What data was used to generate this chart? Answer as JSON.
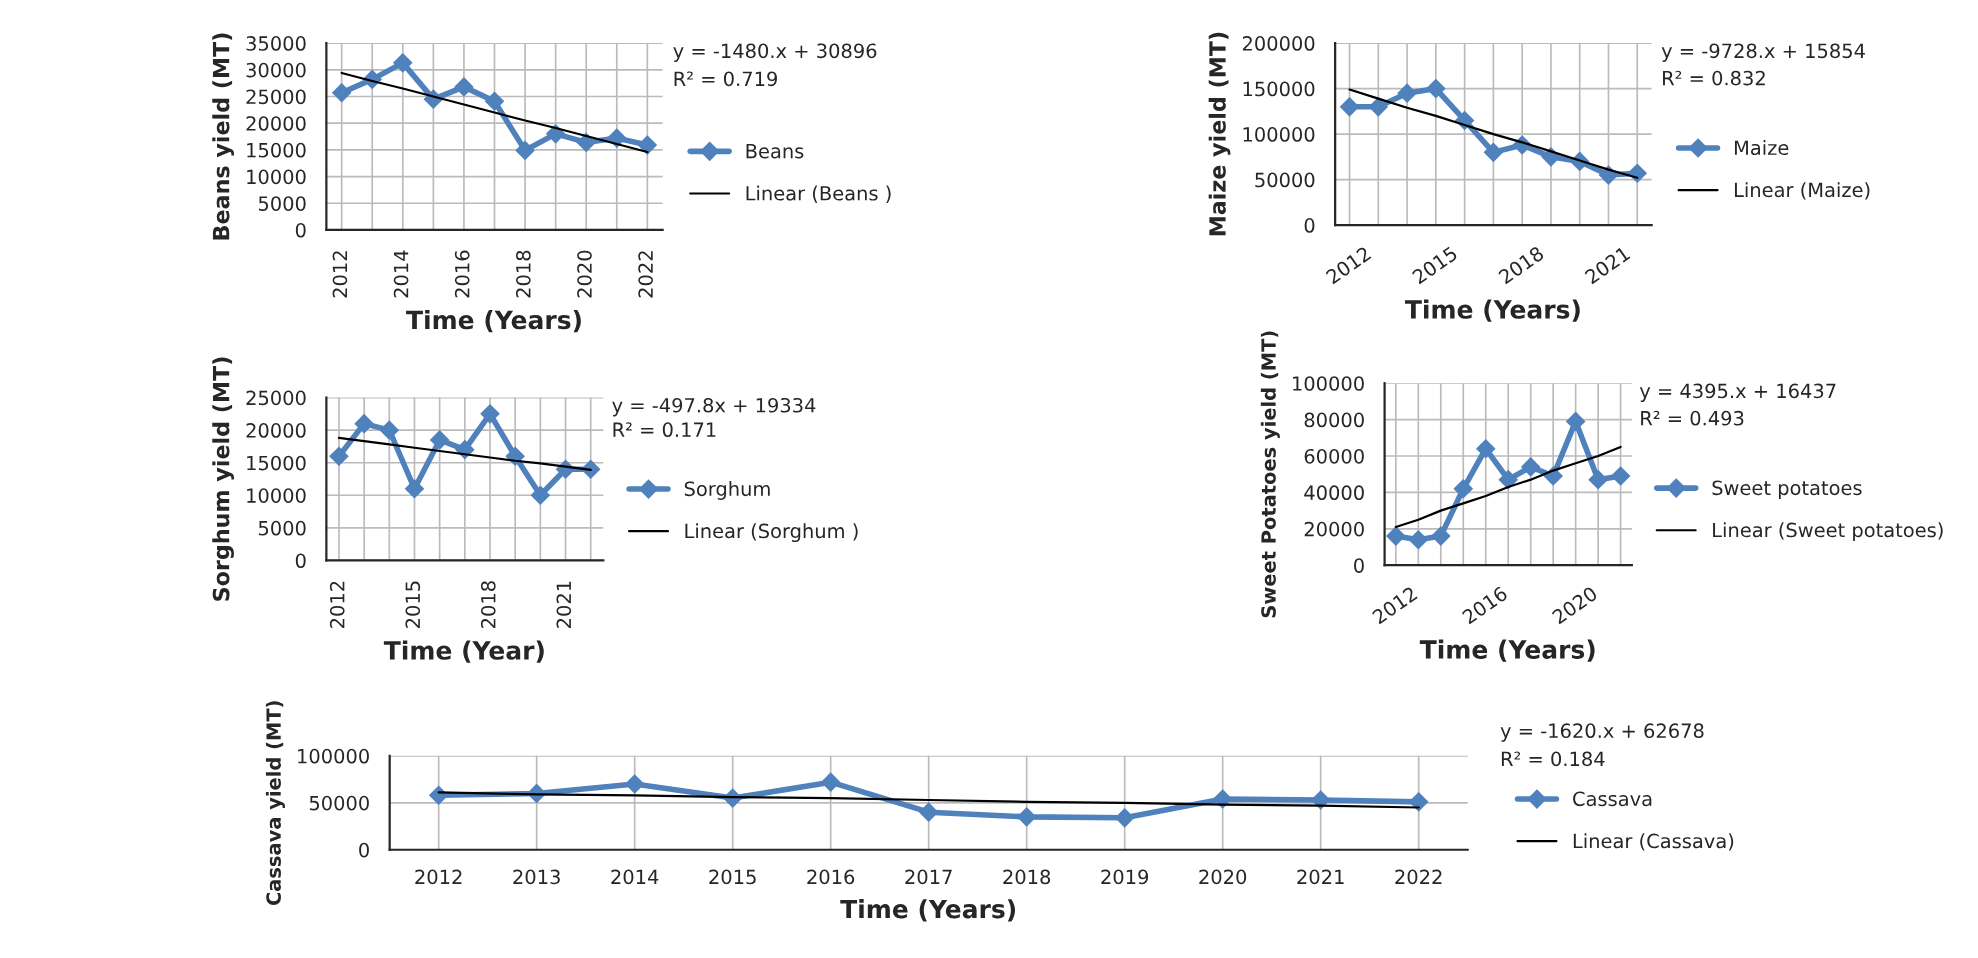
{
  "chart_data": [
    {
      "type": "line",
      "xlabel": "Time (Years)",
      "ylabel": "Beans yield (MT)",
      "categories": [
        "2012",
        null,
        "2014",
        null,
        "2016",
        null,
        "2018",
        null,
        "2020",
        null,
        "2022"
      ],
      "ylim": [
        0,
        35000
      ],
      "yticks": [
        0,
        5000,
        10000,
        15000,
        20000,
        25000,
        30000,
        35000
      ],
      "grid": true,
      "legend": "right",
      "line_style": "solid",
      "series": [
        {
          "name": "Beans",
          "color": "#4f81bd",
          "marker": "diamond",
          "values": [
            25700,
            28200,
            31300,
            24500,
            26800,
            24100,
            14900,
            18000,
            16400,
            17200,
            15900
          ]
        },
        {
          "name": "Linear (Beans )",
          "color": "#000000",
          "marker": "none",
          "values": [
            29400,
            27900,
            26500,
            25000,
            23500,
            22000,
            20500,
            19100,
            17600,
            16100,
            14600
          ]
        }
      ],
      "annotations": [
        "y = -1480.x + 30896",
        "R² = 0.719"
      ]
    },
    {
      "type": "line",
      "xlabel": "Time (Years)",
      "ylabel": "Maize yield (MT)",
      "categories": [
        "2012",
        null,
        null,
        "2015",
        null,
        null,
        "2018",
        null,
        null,
        "2021",
        null
      ],
      "ylim": [
        0,
        200000
      ],
      "yticks": [
        0,
        50000,
        100000,
        150000,
        200000
      ],
      "grid": true,
      "legend": "right",
      "line_style": "solid",
      "series": [
        {
          "name": "Maize",
          "color": "#4f81bd",
          "marker": "diamond",
          "values": [
            130000,
            130000,
            145000,
            150000,
            115000,
            80000,
            88000,
            75000,
            70000,
            55000,
            57000
          ]
        },
        {
          "name": "Linear (Maize)",
          "color": "#000000",
          "marker": "none",
          "values": [
            149000,
            139000,
            129000,
            120000,
            110000,
            100000,
            91000,
            81000,
            71000,
            61000,
            52000
          ]
        }
      ],
      "annotations": [
        "y = -9728.x + 15854",
        "R² = 0.832"
      ]
    },
    {
      "type": "line",
      "xlabel": "Time (Year)",
      "ylabel": "Sorghum yield (MT)",
      "categories": [
        "2012",
        null,
        null,
        "2015",
        null,
        null,
        "2018",
        null,
        null,
        "2021",
        null
      ],
      "ylim": [
        0,
        25000
      ],
      "yticks": [
        0,
        5000,
        10000,
        15000,
        20000,
        25000
      ],
      "grid": true,
      "legend": "right",
      "line_style": "solid",
      "series": [
        {
          "name": "Sorghum",
          "color": "#4f81bd",
          "marker": "diamond",
          "values": [
            16000,
            21000,
            20000,
            11000,
            18500,
            17000,
            22500,
            16000,
            10000,
            14000,
            14000
          ]
        },
        {
          "name": "Linear (Sorghum )",
          "color": "#000000",
          "marker": "none",
          "values": [
            18800,
            18300,
            17800,
            17300,
            16800,
            16300,
            15800,
            15300,
            14900,
            14400,
            13900
          ]
        }
      ],
      "annotations": [
        "y = -497.8x + 19334",
        "R² = 0.171"
      ]
    },
    {
      "type": "line",
      "xlabel": "Time (Years)",
      "ylabel": "Sweet Potatoes yield (MT)",
      "categories": [
        "2012",
        null,
        null,
        null,
        "2016",
        null,
        null,
        null,
        "2020",
        null,
        null
      ],
      "ylim": [
        0,
        100000
      ],
      "yticks": [
        0,
        20000,
        40000,
        60000,
        80000,
        100000
      ],
      "grid": true,
      "legend": "right",
      "line_style": "solid",
      "series": [
        {
          "name": "Sweet potatoes",
          "color": "#4f81bd",
          "marker": "diamond",
          "values": [
            16000,
            14000,
            16000,
            42000,
            64000,
            47000,
            54000,
            49000,
            79000,
            47000,
            49000
          ]
        },
        {
          "name": "Linear (Sweet potatoes)",
          "color": "#000000",
          "marker": "none",
          "values": [
            21000,
            25000,
            30000,
            34000,
            38000,
            43000,
            47000,
            52000,
            56000,
            60000,
            65000
          ]
        }
      ],
      "annotations": [
        "y = 4395.x + 16437",
        "R² = 0.493"
      ]
    },
    {
      "type": "line",
      "xlabel": "Time (Years)",
      "ylabel": "Cassava yield (MT)",
      "categories": [
        "2012",
        "2013",
        "2014",
        "2015",
        "2016",
        "2017",
        "2018",
        "2019",
        "2020",
        "2021",
        "2022"
      ],
      "ylim": [
        0,
        100000
      ],
      "yticks": [
        0,
        50000,
        100000
      ],
      "grid": true,
      "legend": "right",
      "line_style": "solid",
      "series": [
        {
          "name": "Cassava",
          "color": "#4f81bd",
          "marker": "diamond",
          "values": [
            58000,
            60000,
            70000,
            55000,
            72000,
            40000,
            35000,
            34000,
            54000,
            53000,
            51000
          ]
        },
        {
          "name": "Linear (Cassava)",
          "color": "#000000",
          "marker": "none",
          "values": [
            61000,
            59000,
            58000,
            56000,
            55000,
            53000,
            51000,
            50000,
            48000,
            47000,
            45000
          ]
        }
      ],
      "annotations": [
        "y = -1620.x + 62678",
        "R² = 0.184"
      ]
    }
  ]
}
